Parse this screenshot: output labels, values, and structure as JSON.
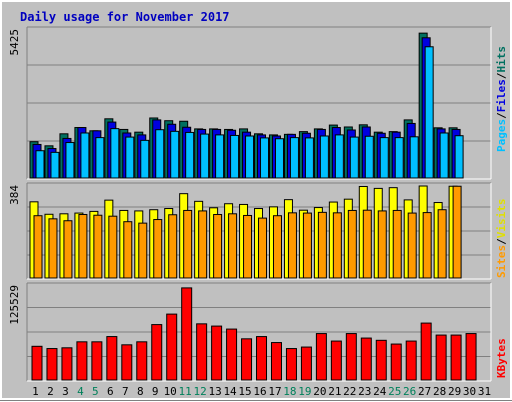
{
  "chart_data": {
    "type": "bar",
    "title": "Daily usage for November 2017",
    "categories": [
      "1",
      "2",
      "3",
      "4",
      "5",
      "6",
      "7",
      "8",
      "9",
      "10",
      "11",
      "12",
      "13",
      "14",
      "15",
      "16",
      "17",
      "18",
      "19",
      "20",
      "21",
      "22",
      "23",
      "24",
      "25",
      "26",
      "27",
      "28",
      "29",
      "30",
      "31"
    ],
    "weekend_days": [
      "4",
      "5",
      "11",
      "12",
      "18",
      "19",
      "25",
      "26"
    ],
    "panels": [
      {
        "name": "hits_files_pages",
        "ymax_label": "5425",
        "ylim": [
          0,
          5425
        ],
        "legend": [
          "Pages",
          "Files",
          "Hits"
        ],
        "series": [
          {
            "name": "Hits",
            "color": "#007060",
            "values": [
              1330,
              1180,
              1620,
              1850,
              1730,
              2170,
              1780,
              1680,
              2200,
              2100,
              2080,
              1800,
              1800,
              1780,
              1800,
              1620,
              1580,
              1600,
              1700,
              1800,
              1940,
              1870,
              1950,
              1680,
              1700,
              2130,
              5310,
              1840,
              1840
            ]
          },
          {
            "name": "Files",
            "color": "#0000e0",
            "values": [
              1230,
              1080,
              1450,
              1850,
              1730,
              2050,
              1650,
              1580,
              2130,
              1970,
              1860,
              1780,
              1780,
              1750,
              1680,
              1580,
              1540,
              1600,
              1640,
              1780,
              1850,
              1760,
              1870,
              1640,
              1680,
              2000,
              5140,
              1800,
              1780
            ]
          },
          {
            "name": "Pages",
            "color": "#00c0ff",
            "values": [
              1000,
              940,
              1300,
              1650,
              1480,
              1810,
              1500,
              1380,
              1770,
              1710,
              1670,
              1610,
              1580,
              1560,
              1540,
              1470,
              1440,
              1480,
              1470,
              1540,
              1580,
              1500,
              1530,
              1480,
              1480,
              1510,
              4810,
              1650,
              1550
            ]
          }
        ]
      },
      {
        "name": "visits_sites",
        "ymax_label": "384",
        "ylim": [
          0,
          384
        ],
        "legend": [
          "Sites",
          "Visits",
          ""
        ],
        "series": [
          {
            "name": "Visits",
            "color": "#ffff00",
            "values": [
              318,
              266,
              268,
              271,
              278,
              325,
              282,
              280,
              285,
              290,
              352,
              320,
              293,
              310,
              307,
              290,
              297,
              327,
              283,
              294,
              317,
              329,
              382,
              374,
              377,
              326,
              384,
              315,
              383
            ]
          },
          {
            "name": "Sites",
            "color": "#ff9a00",
            "values": [
              260,
              247,
              239,
              265,
              262,
              258,
              235,
              229,
              244,
              264,
              282,
              280,
              265,
              268,
              261,
              250,
              260,
              272,
              271,
              274,
              272,
              282,
              283,
              280,
              282,
              271,
              273,
              285,
              383
            ]
          }
        ]
      },
      {
        "name": "kbytes",
        "ymax_label": "125529",
        "ylim": [
          0,
          125529
        ],
        "legend": [
          "KBytes"
        ],
        "series": [
          {
            "name": "KBytes",
            "color": "#ff0000",
            "values": [
              45000,
              42000,
              43000,
              51000,
              51000,
              58000,
              47000,
              51000,
              74000,
              88000,
              123000,
              75000,
              72000,
              68000,
              55000,
              58000,
              50000,
              42000,
              44000,
              62000,
              52000,
              62000,
              56000,
              53000,
              48000,
              52000,
              76000,
              60000,
              60000,
              62000
            ]
          }
        ]
      }
    ]
  }
}
